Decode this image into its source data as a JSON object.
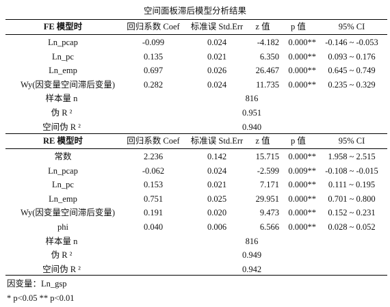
{
  "title": "空间面板滞后模型分析结果",
  "fe": {
    "header": {
      "name": "FE 模型时",
      "coef": "回归系数 Coef",
      "stderr": "标准误 Std.Err",
      "z": "z 值",
      "p": "p 值",
      "ci": "95% CI"
    },
    "rows": [
      {
        "name": "Ln_pcap",
        "coef": "-0.099",
        "se": "0.024",
        "z": "-4.182",
        "p": "0.000**",
        "ci": "-0.146 ~ -0.053"
      },
      {
        "name": "Ln_pc",
        "coef": "0.135",
        "se": "0.021",
        "z": "6.350",
        "p": "0.000**",
        "ci": "0.093 ~ 0.176"
      },
      {
        "name": "Ln_emp",
        "coef": "0.697",
        "se": "0.026",
        "z": "26.467",
        "p": "0.000**",
        "ci": "0.645 ~ 0.749"
      },
      {
        "name": "Wy(因变量空间滞后变量)",
        "coef": "0.282",
        "se": "0.024",
        "z": "11.735",
        "p": "0.000**",
        "ci": "0.235 ~ 0.329"
      }
    ],
    "stats": [
      {
        "label": "样本量 n",
        "value": "816"
      },
      {
        "label": "伪 R ²",
        "value": "0.951"
      },
      {
        "label": "空间伪 R ²",
        "value": "0.940"
      }
    ]
  },
  "re": {
    "header": {
      "name": "RE 模型时",
      "coef": "回归系数 Coef",
      "stderr": "标准误 Std.Err",
      "z": "z 值",
      "p": "p 值",
      "ci": "95% CI"
    },
    "rows": [
      {
        "name": "常数",
        "coef": "2.236",
        "se": "0.142",
        "z": "15.715",
        "p": "0.000**",
        "ci": "1.958 ~ 2.515"
      },
      {
        "name": "Ln_pcap",
        "coef": "-0.062",
        "se": "0.024",
        "z": "-2.599",
        "p": "0.009**",
        "ci": "-0.108 ~ -0.015"
      },
      {
        "name": "Ln_pc",
        "coef": "0.153",
        "se": "0.021",
        "z": "7.171",
        "p": "0.000**",
        "ci": "0.111 ~ 0.195"
      },
      {
        "name": "Ln_emp",
        "coef": "0.751",
        "se": "0.025",
        "z": "29.951",
        "p": "0.000**",
        "ci": "0.701 ~ 0.800"
      },
      {
        "name": "Wy(因变量空间滞后变量)",
        "coef": "0.191",
        "se": "0.020",
        "z": "9.473",
        "p": "0.000**",
        "ci": "0.152 ~ 0.231"
      },
      {
        "name": "phi",
        "coef": "0.040",
        "se": "0.006",
        "z": "6.566",
        "p": "0.000**",
        "ci": "0.028 ~ 0.052"
      }
    ],
    "stats": [
      {
        "label": "样本量 n",
        "value": "816"
      },
      {
        "label": "伪 R ²",
        "value": "0.949"
      },
      {
        "label": "空间伪 R ²",
        "value": "0.942"
      }
    ]
  },
  "footnotes": {
    "dependent": "因变量：Ln_gsp",
    "significance": "* p<0.05 ** p<0.01"
  }
}
